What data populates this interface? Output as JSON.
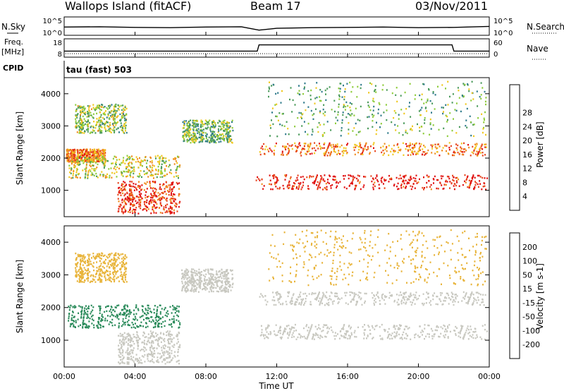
{
  "header": {
    "station": "Wallops Island (fitACF)",
    "beam": "Beam 17",
    "date": "03/Nov/2011"
  },
  "top_panels": {
    "nsky_label": "N.Sky",
    "nsearch_label": "N.Search",
    "freq_label": "Freq.",
    "freq_unit": "[MHz]",
    "nave_label": "Nave",
    "cpid_label": "CPID",
    "cpid_value": "tau (fast) 503",
    "noise_ticks": [
      "10^5",
      "10^0"
    ],
    "freq_ticks": [
      "18",
      "8"
    ],
    "nave_ticks": [
      "60",
      "0"
    ]
  },
  "x_axis": {
    "label": "Time UT",
    "ticks": [
      "00:00",
      "04:00",
      "08:00",
      "12:00",
      "16:00",
      "20:00",
      "00:00"
    ]
  },
  "y_axis": {
    "label": "Slant Range [km]",
    "ticks": [
      "1000",
      "2000",
      "3000",
      "4000"
    ]
  },
  "colorbars": {
    "power": {
      "label": "Power [dB]",
      "ticks": [
        "4",
        "8",
        "12",
        "16",
        "20",
        "24",
        "28"
      ],
      "colors": [
        "#0a14e6",
        "#2a4fb5",
        "#2e7a8a",
        "#4a9a5a",
        "#8fcc3c",
        "#f0c81e",
        "#f08c1e",
        "#e8461e",
        "#e01010"
      ]
    },
    "velocity": {
      "label": "Velocity [m s-1]",
      "ticks": [
        "200",
        "100",
        "50",
        "15",
        "-15",
        "-50",
        "-100",
        "-200"
      ],
      "colors": [
        "#1a2ea0",
        "#2a5a9a",
        "#2a8a5a",
        "#7ad040",
        "#c8c8c0",
        "#e8b43a",
        "#f08a1e",
        "#e85018",
        "#e01010"
      ]
    }
  },
  "chart_data": [
    {
      "type": "line",
      "title": "N.Sky / N.Search",
      "x": [
        0,
        2,
        4,
        6,
        8,
        10,
        11,
        12,
        14,
        16,
        18,
        20,
        22,
        24
      ],
      "series": [
        {
          "name": "N.Sky",
          "values": [
            2.2,
            2.3,
            2.1,
            2.0,
            2.2,
            2.3,
            1.2,
            1.8,
            2.0,
            2.1,
            2.2,
            2.0,
            2.1,
            2.4
          ]
        }
      ],
      "ylim": [
        0,
        5
      ]
    },
    {
      "type": "line",
      "title": "Freq. [MHz]",
      "x": [
        0,
        10.9,
        11.0,
        21.9,
        22.0,
        24
      ],
      "series": [
        {
          "name": "Freq.",
          "values": [
            11,
            11,
            15,
            15,
            11,
            11
          ]
        }
      ],
      "ylim": [
        8,
        18
      ]
    },
    {
      "type": "heatmap",
      "title": "Power [dB]",
      "xlabel": "Time UT",
      "ylabel": "Slant Range [km]",
      "xlim": [
        0,
        24
      ],
      "ylim": [
        180,
        4500
      ],
      "bands": [
        {
          "t0": 0.6,
          "t1": 3.5,
          "r0": 2800,
          "r1": 3700,
          "value": 16
        },
        {
          "t0": 0.1,
          "t1": 2.3,
          "r0": 1900,
          "r1": 2300,
          "value": 24
        },
        {
          "t0": 0.2,
          "t1": 6.5,
          "r0": 1400,
          "r1": 2100,
          "value": 18
        },
        {
          "t0": 3.0,
          "t1": 6.5,
          "r0": 300,
          "r1": 1300,
          "value": 28
        },
        {
          "t0": 6.6,
          "t1": 9.5,
          "r0": 2500,
          "r1": 3200,
          "value": 14
        },
        {
          "t0": 10.8,
          "t1": 23.9,
          "r0": 1050,
          "r1": 1500,
          "value": 30
        },
        {
          "t0": 11.0,
          "t1": 23.8,
          "r0": 2100,
          "r1": 2500,
          "value": 24
        },
        {
          "t0": 11.5,
          "t1": 23.8,
          "r0": 2700,
          "r1": 4400,
          "value": 14
        }
      ]
    },
    {
      "type": "heatmap",
      "title": "Velocity [m s-1]",
      "xlabel": "Time UT",
      "ylabel": "Slant Range [km]",
      "xlim": [
        0,
        24
      ],
      "ylim": [
        180,
        4500
      ],
      "bands": [
        {
          "t0": 0.6,
          "t1": 3.5,
          "r0": 2800,
          "r1": 3700,
          "value": -30
        },
        {
          "t0": 0.2,
          "t1": 6.5,
          "r0": 1400,
          "r1": 2100,
          "value": 60
        },
        {
          "t0": 3.0,
          "t1": 6.5,
          "r0": 300,
          "r1": 1300,
          "value": 0
        },
        {
          "t0": 6.6,
          "t1": 9.5,
          "r0": 2500,
          "r1": 3200,
          "value": 0
        },
        {
          "t0": 10.8,
          "t1": 23.9,
          "r0": 1050,
          "r1": 1500,
          "value": 0
        },
        {
          "t0": 11.0,
          "t1": 23.8,
          "r0": 2100,
          "r1": 2500,
          "value": 5
        },
        {
          "t0": 11.5,
          "t1": 23.8,
          "r0": 2700,
          "r1": 4400,
          "value": -40
        }
      ]
    }
  ]
}
